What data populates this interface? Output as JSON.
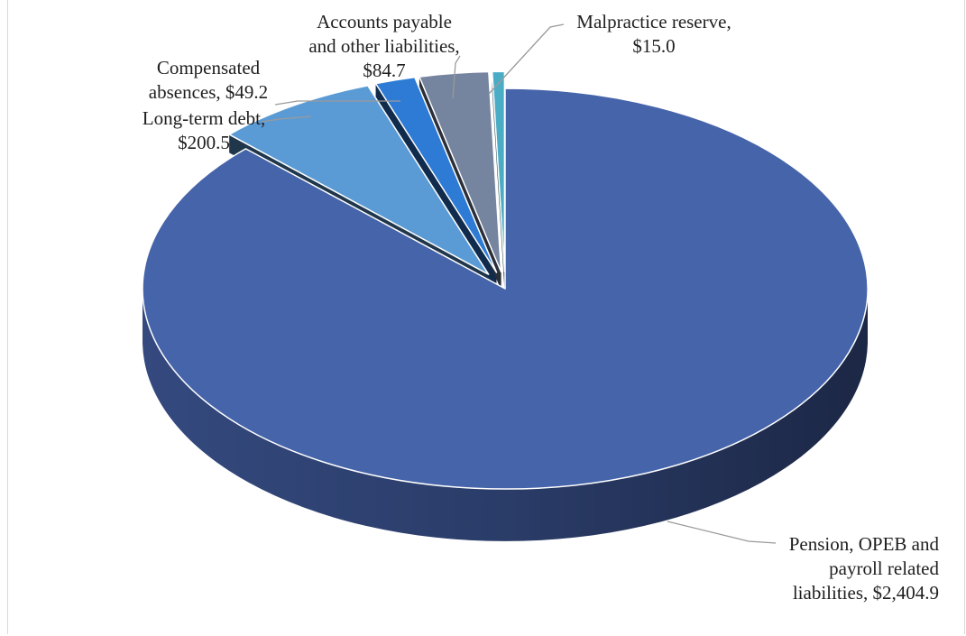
{
  "chart_data": {
    "type": "pie",
    "variant": "3d-exploded",
    "title": "",
    "units": "$",
    "slices": [
      {
        "label": "Pension, OPEB and payroll related liabilities",
        "value": 2404.9,
        "value_label": "$2,404.9",
        "color": "#4664aa",
        "label_lines": [
          "Pension, OPEB and",
          "payroll related",
          "liabilities,  $2,404.9"
        ]
      },
      {
        "label": "Long-term debt",
        "value": 200.5,
        "value_label": "$200.5",
        "color": "#5b9bd5",
        "label_lines": [
          "Long-term debt,",
          "$200.5"
        ]
      },
      {
        "label": "Compensated absences",
        "value": 49.2,
        "value_label": "$49.2",
        "color": "#2e7bd6",
        "label_lines": [
          "Compensated",
          "absences,  $49.2"
        ]
      },
      {
        "label": "Accounts payable and other liabilities",
        "value": 84.7,
        "value_label": "$84.7",
        "color": "#75849f",
        "label_lines": [
          "Accounts payable",
          "and other liabilities,",
          "$84.7"
        ]
      },
      {
        "label": "Malpractice reserve",
        "value": 15.0,
        "value_label": "$15.0",
        "color": "#4bacc6",
        "label_lines": [
          "Malpractice reserve,",
          "$15.0"
        ]
      }
    ],
    "legend": "none"
  }
}
